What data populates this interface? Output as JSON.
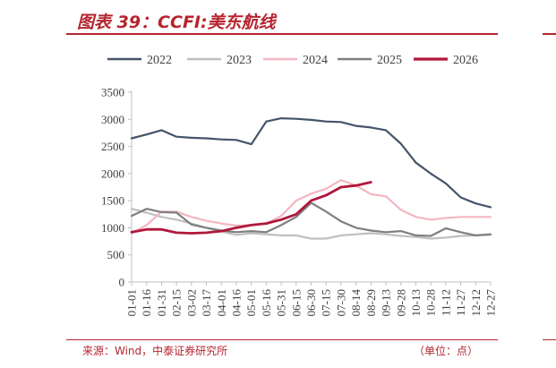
{
  "figure": {
    "title": "图表 39：CCFI:美东航线",
    "source": "来源：Wind，中泰证券研究所",
    "unit": "（单位：点）"
  },
  "colors": {
    "accent": "#b5252f",
    "s2022": "#44546a",
    "s2023": "#bfbfbf",
    "s2024": "#f4b6c2",
    "s2025": "#7f7f7f",
    "s2026": "#b0173a"
  },
  "chart_data": {
    "type": "line",
    "title": "",
    "xlabel": "",
    "ylabel": "",
    "ylim": [
      0,
      3500
    ],
    "yticks": [
      0,
      500,
      1000,
      1500,
      2000,
      2500,
      3000,
      3500
    ],
    "x": [
      "01-01",
      "01-16",
      "01-31",
      "02-15",
      "03-02",
      "03-17",
      "04-01",
      "04-16",
      "05-01",
      "05-16",
      "05-31",
      "06-15",
      "06-30",
      "07-15",
      "07-30",
      "08-14",
      "08-29",
      "09-13",
      "09-28",
      "10-13",
      "10-28",
      "11-12",
      "11-27",
      "12-12",
      "12-27"
    ],
    "legend_position": "top",
    "grid": false,
    "series": [
      {
        "name": "2022",
        "color": "#44546a",
        "width": 2.2,
        "values": [
          2650,
          2720,
          2800,
          2680,
          2660,
          2650,
          2630,
          2620,
          2540,
          2960,
          3020,
          3010,
          2990,
          2960,
          2950,
          2880,
          2850,
          2800,
          2550,
          2200,
          2000,
          1820,
          1560,
          1450,
          1380
        ]
      },
      {
        "name": "2023",
        "color": "#bfbfbf",
        "width": 2.2,
        "values": [
          1350,
          1280,
          1200,
          1150,
          1080,
          1000,
          930,
          870,
          900,
          880,
          860,
          860,
          800,
          800,
          860,
          880,
          900,
          880,
          850,
          830,
          800,
          820,
          850,
          860,
          870
        ]
      },
      {
        "name": "2024",
        "color": "#f4b6c2",
        "width": 2.2,
        "values": [
          900,
          1050,
          1300,
          1300,
          1200,
          1130,
          1080,
          1040,
          1050,
          1080,
          1220,
          1500,
          1630,
          1720,
          1880,
          1780,
          1620,
          1580,
          1330,
          1200,
          1150,
          1180,
          1200,
          1200,
          1200
        ]
      },
      {
        "name": "2025",
        "color": "#7f7f7f",
        "width": 2.2,
        "values": [
          1220,
          1350,
          1290,
          1280,
          1060,
          1000,
          950,
          920,
          940,
          920,
          1050,
          1200,
          1460,
          1300,
          1120,
          1000,
          950,
          920,
          940,
          860,
          850,
          990,
          920,
          860,
          880
        ]
      },
      {
        "name": "2026",
        "color": "#b0173a",
        "width": 2.8,
        "values": [
          920,
          970,
          970,
          910,
          900,
          910,
          940,
          1000,
          1050,
          1080,
          1150,
          1250,
          1500,
          1600,
          1750,
          1780,
          1840,
          null,
          null,
          null,
          null,
          null,
          null,
          null,
          null
        ]
      }
    ]
  }
}
